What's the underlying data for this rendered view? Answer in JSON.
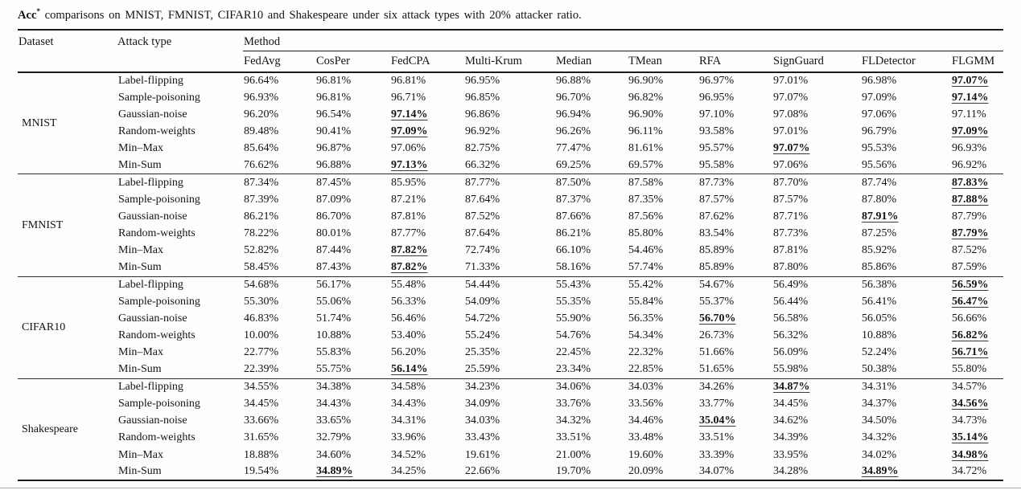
{
  "caption": {
    "metric": "Acc",
    "superscript": "*",
    "rest": " comparisons on MNIST, FMNIST, CIFAR10 and Shakespeare under six attack types with 20% attacker ratio."
  },
  "colors": {
    "text": "#141414",
    "rule": "#1c1c1c",
    "light_rule": "#a9a9a9",
    "background": "#fdfdfc"
  },
  "table": {
    "headers": {
      "dataset": "Dataset",
      "attack_type": "Attack type",
      "method_group": "Method",
      "methods": [
        "FedAvg",
        "CosPer",
        "FedCPA",
        "Multi-Krum",
        "Median",
        "TMean",
        "RFA",
        "SignGuard",
        "FLDetector",
        "FLGMM"
      ]
    },
    "groups": [
      {
        "dataset": "MNIST",
        "rows": [
          {
            "attack": "Label-flipping",
            "values": [
              "96.64%",
              "96.81%",
              "96.81%",
              "96.95%",
              "96.88%",
              "96.90%",
              "96.97%",
              "97.01%",
              "96.98%",
              "97.07%"
            ],
            "best": [
              9
            ]
          },
          {
            "attack": "Sample-poisoning",
            "values": [
              "96.93%",
              "96.81%",
              "96.71%",
              "96.85%",
              "96.70%",
              "96.82%",
              "96.95%",
              "97.07%",
              "97.09%",
              "97.14%"
            ],
            "best": [
              9
            ]
          },
          {
            "attack": "Gaussian-noise",
            "values": [
              "96.20%",
              "96.54%",
              "97.14%",
              "96.86%",
              "96.94%",
              "96.90%",
              "97.10%",
              "97.08%",
              "97.06%",
              "97.11%"
            ],
            "best": [
              2
            ]
          },
          {
            "attack": "Random-weights",
            "values": [
              "89.48%",
              "90.41%",
              "97.09%",
              "96.92%",
              "96.26%",
              "96.11%",
              "93.58%",
              "97.01%",
              "96.79%",
              "97.09%"
            ],
            "best": [
              2,
              9
            ]
          },
          {
            "attack": "Min–Max",
            "values": [
              "85.64%",
              "96.87%",
              "97.06%",
              "82.75%",
              "77.47%",
              "81.61%",
              "95.57%",
              "97.07%",
              "95.53%",
              "96.93%"
            ],
            "best": [
              7
            ]
          },
          {
            "attack": "Min-Sum",
            "values": [
              "76.62%",
              "96.88%",
              "97.13%",
              "66.32%",
              "69.25%",
              "69.57%",
              "95.58%",
              "97.06%",
              "95.56%",
              "96.92%"
            ],
            "best": [
              2
            ]
          }
        ]
      },
      {
        "dataset": "FMNIST",
        "rows": [
          {
            "attack": "Label-flipping",
            "values": [
              "87.34%",
              "87.45%",
              "85.95%",
              "87.77%",
              "87.50%",
              "87.58%",
              "87.73%",
              "87.70%",
              "87.74%",
              "87.83%"
            ],
            "best": [
              9
            ]
          },
          {
            "attack": "Sample-poisoning",
            "values": [
              "87.39%",
              "87.09%",
              "87.21%",
              "87.64%",
              "87.37%",
              "87.35%",
              "87.57%",
              "87.57%",
              "87.80%",
              "87.88%"
            ],
            "best": [
              9
            ]
          },
          {
            "attack": "Gaussian-noise",
            "values": [
              "86.21%",
              "86.70%",
              "87.81%",
              "87.52%",
              "87.66%",
              "87.56%",
              "87.62%",
              "87.71%",
              "87.91%",
              "87.79%"
            ],
            "best": [
              8
            ]
          },
          {
            "attack": "Random-weights",
            "values": [
              "78.22%",
              "80.01%",
              "87.77%",
              "87.64%",
              "86.21%",
              "85.80%",
              "83.54%",
              "87.73%",
              "87.25%",
              "87.79%"
            ],
            "best": [
              9
            ]
          },
          {
            "attack": "Min–Max",
            "values": [
              "52.82%",
              "87.44%",
              "87.82%",
              "72.74%",
              "66.10%",
              "54.46%",
              "85.89%",
              "87.81%",
              "85.92%",
              "87.52%"
            ],
            "best": [
              2
            ]
          },
          {
            "attack": "Min-Sum",
            "values": [
              "58.45%",
              "87.43%",
              "87.82%",
              "71.33%",
              "58.16%",
              "57.74%",
              "85.89%",
              "87.80%",
              "85.86%",
              "87.59%"
            ],
            "best": [
              2
            ]
          }
        ]
      },
      {
        "dataset": "CIFAR10",
        "rows": [
          {
            "attack": "Label-flipping",
            "values": [
              "54.68%",
              "56.17%",
              "55.48%",
              "54.44%",
              "55.43%",
              "55.42%",
              "54.67%",
              "56.49%",
              "56.38%",
              "56.59%"
            ],
            "best": [
              9
            ]
          },
          {
            "attack": "Sample-poisoning",
            "values": [
              "55.30%",
              "55.06%",
              "56.33%",
              "54.09%",
              "55.35%",
              "55.84%",
              "55.37%",
              "56.44%",
              "56.41%",
              "56.47%"
            ],
            "best": [
              9
            ]
          },
          {
            "attack": "Gaussian-noise",
            "values": [
              "46.83%",
              "51.74%",
              "56.46%",
              "54.72%",
              "55.90%",
              "56.35%",
              "56.70%",
              "56.58%",
              "56.05%",
              "56.66%"
            ],
            "best": [
              6
            ]
          },
          {
            "attack": "Random-weights",
            "values": [
              "10.00%",
              "10.88%",
              "53.40%",
              "55.24%",
              "54.76%",
              "54.34%",
              "26.73%",
              "56.32%",
              "10.88%",
              "56.82%"
            ],
            "best": [
              9
            ]
          },
          {
            "attack": "Min–Max",
            "values": [
              "22.77%",
              "55.83%",
              "56.20%",
              "25.35%",
              "22.45%",
              "22.32%",
              "51.66%",
              "56.09%",
              "52.24%",
              "56.71%"
            ],
            "best": [
              9
            ]
          },
          {
            "attack": "Min-Sum",
            "values": [
              "22.39%",
              "55.75%",
              "56.14%",
              "25.59%",
              "23.34%",
              "22.85%",
              "51.65%",
              "55.98%",
              "50.38%",
              "55.80%"
            ],
            "best": [
              2
            ]
          }
        ]
      },
      {
        "dataset": "Shakespeare",
        "rows": [
          {
            "attack": "Label-flipping",
            "values": [
              "34.55%",
              "34.38%",
              "34.58%",
              "34.23%",
              "34.06%",
              "34.03%",
              "34.26%",
              "34.87%",
              "34.31%",
              "34.57%"
            ],
            "best": [
              7
            ]
          },
          {
            "attack": "Sample-poisoning",
            "values": [
              "34.45%",
              "34.43%",
              "34.43%",
              "34.09%",
              "33.76%",
              "33.56%",
              "33.77%",
              "34.45%",
              "34.37%",
              "34.56%"
            ],
            "best": [
              9
            ]
          },
          {
            "attack": "Gaussian-noise",
            "values": [
              "33.66%",
              "33.65%",
              "34.31%",
              "34.03%",
              "34.32%",
              "34.46%",
              "35.04%",
              "34.62%",
              "34.50%",
              "34.73%"
            ],
            "best": [
              6
            ]
          },
          {
            "attack": "Random-weights",
            "values": [
              "31.65%",
              "32.79%",
              "33.96%",
              "33.43%",
              "33.51%",
              "33.48%",
              "33.51%",
              "34.39%",
              "34.32%",
              "35.14%"
            ],
            "best": [
              9
            ]
          },
          {
            "attack": "Min–Max",
            "values": [
              "18.88%",
              "34.60%",
              "34.52%",
              "19.61%",
              "21.00%",
              "19.60%",
              "33.39%",
              "33.95%",
              "34.02%",
              "34.98%"
            ],
            "best": [
              9
            ]
          },
          {
            "attack": "Min-Sum",
            "values": [
              "19.54%",
              "34.89%",
              "34.25%",
              "22.66%",
              "19.70%",
              "20.09%",
              "34.07%",
              "34.28%",
              "34.89%",
              "34.72%"
            ],
            "best": [
              1,
              8
            ]
          }
        ]
      }
    ]
  }
}
